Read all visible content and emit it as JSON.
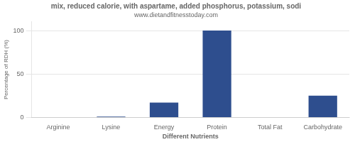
{
  "chart_data": {
    "type": "bar",
    "title": "mix, reduced calorie, with aspartame, added phosphorus, potassium, sodi",
    "subtitle": "www.dietandfitnesstoday.com",
    "xlabel": "Different Nutrients",
    "ylabel": "Percentage of RDH (%)",
    "categories": [
      "Arginine",
      "Lysine",
      "Energy",
      "Protein",
      "Total Fat",
      "Carbohydrate"
    ],
    "values": [
      0.4,
      1.0,
      17,
      100,
      0.3,
      25
    ],
    "color": "#2e4e8e",
    "ylim": [
      0,
      110
    ],
    "yticks": [
      0,
      50,
      100
    ],
    "grid": true
  }
}
